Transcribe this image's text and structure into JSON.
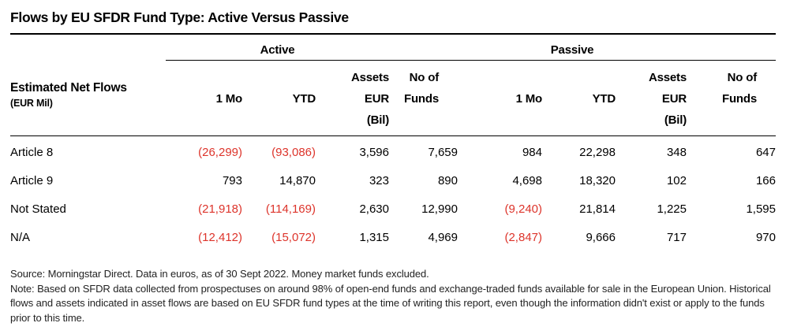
{
  "title": "Flows by EU SFDR Fund Type: Active Versus Passive",
  "table": {
    "row_header_title": "Estimated Net Flows",
    "row_header_subtitle": "(EUR Mil)",
    "groups": {
      "active": "Active",
      "passive": "Passive"
    },
    "columns": {
      "active": {
        "mo": "1 Mo",
        "ytd": "YTD",
        "assets_l1": "Assets",
        "assets_l2": "EUR",
        "assets_l3": "(Bil)",
        "funds_l1": "No of",
        "funds_l2": "Funds"
      },
      "passive": {
        "mo": "1 Mo",
        "ytd": "YTD",
        "assets_l1": "Assets",
        "assets_l2": "EUR",
        "assets_l3": "(Bil)",
        "funds_l1": "No of",
        "funds_l2": "Funds"
      }
    },
    "rows": [
      {
        "label": "Article 8",
        "cells": [
          "(26,299)",
          "(93,086)",
          "3,596",
          "7,659",
          "984",
          "22,298",
          "348",
          "647"
        ]
      },
      {
        "label": "Article 9",
        "cells": [
          "793",
          "14,870",
          "323",
          "890",
          "4,698",
          "18,320",
          "102",
          "166"
        ]
      },
      {
        "label": "Not Stated",
        "cells": [
          "(21,918)",
          "(114,169)",
          "2,630",
          "12,990",
          "(9,240)",
          "21,814",
          "1,225",
          "1,595"
        ]
      },
      {
        "label": "N/A",
        "cells": [
          "(12,412)",
          "(15,072)",
          "1,315",
          "4,969",
          "(2,847)",
          "9,666",
          "717",
          "970"
        ]
      }
    ]
  },
  "footer": {
    "source": "Source: Morningstar Direct. Data in euros, as of 30 Sept 2022. Money market funds excluded.",
    "note": "Note: Based on SFDR data collected from prospectuses on around 98% of open-end funds and exchange-traded funds available for sale in the European Union. Historical flows and assets indicated in asset flows are based on EU SFDR fund types at the time of writing this report, even though the information didn't exist or apply to the funds prior to this time."
  },
  "colors": {
    "negative": "#DD342B",
    "text": "#000000",
    "rule": "#000000"
  }
}
